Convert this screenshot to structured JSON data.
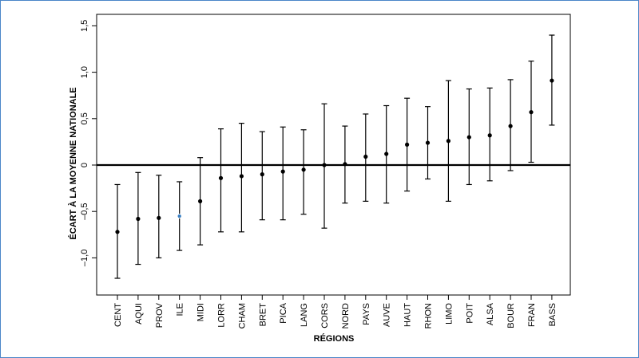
{
  "chart_data": {
    "type": "scatter",
    "variant": "point-with-error-bars",
    "title": "",
    "xlabel": "RÉGIONS",
    "ylabel": "ÉCART À LA MOYENNE NATIONALE",
    "ylim": [
      -1.5,
      1.6
    ],
    "yticks": [
      -1.0,
      -0.5,
      0,
      0.5,
      1.0,
      1.5
    ],
    "ytick_labels": [
      "–1,0",
      "–0,5",
      "0",
      "0,5",
      "1,0",
      "1,5"
    ],
    "reference_line": 0,
    "grid": false,
    "categories": [
      "CENT",
      "AQUI",
      "PROV",
      "ILE",
      "MIDI",
      "LORR",
      "CHAM",
      "BRET",
      "PICA",
      "LANG",
      "CORS",
      "NORD",
      "PAYS",
      "AUVE",
      "HAUT",
      "RHON",
      "LIMO",
      "POIT",
      "ALSA",
      "BOUR",
      "FRAN",
      "BASS"
    ],
    "values": [
      -0.72,
      -0.58,
      -0.57,
      -0.55,
      -0.39,
      -0.14,
      -0.12,
      -0.1,
      -0.07,
      -0.05,
      0.0,
      0.01,
      0.09,
      0.12,
      0.22,
      0.24,
      0.26,
      0.3,
      0.32,
      0.42,
      0.57,
      0.91
    ],
    "lower": [
      -1.22,
      -1.07,
      -1.0,
      -0.92,
      -0.86,
      -0.72,
      -0.72,
      -0.59,
      -0.59,
      -0.53,
      -0.68,
      -0.41,
      -0.39,
      -0.41,
      -0.28,
      -0.15,
      -0.39,
      -0.21,
      -0.17,
      -0.06,
      0.03,
      0.43
    ],
    "upper": [
      -0.21,
      -0.08,
      -0.11,
      -0.18,
      0.08,
      0.39,
      0.45,
      0.36,
      0.41,
      0.38,
      0.66,
      0.42,
      0.55,
      0.64,
      0.72,
      0.63,
      0.91,
      0.82,
      0.83,
      0.92,
      1.12,
      1.4
    ],
    "point_color": "#000000",
    "highlight": {
      "category": "ILE",
      "color": "#3a7fc1"
    }
  }
}
